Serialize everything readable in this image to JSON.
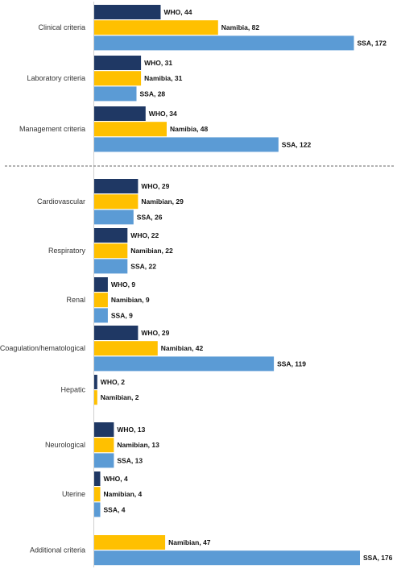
{
  "chart_data": {
    "type": "bar",
    "orientation": "horizontal",
    "colors": {
      "WHO": "#1f3864",
      "Namibia": "#ffc000",
      "SSA": "#5b9bd5"
    },
    "groups": [
      {
        "category": "Clinical criteria",
        "bars": [
          {
            "series": "WHO",
            "label": "WHO, 44",
            "value": 44
          },
          {
            "series": "Namibia",
            "label": "Namibia, 82",
            "value": 82
          },
          {
            "series": "SSA",
            "label": "SSA, 172",
            "value": 172
          }
        ]
      },
      {
        "category": "Laboratory criteria",
        "bars": [
          {
            "series": "WHO",
            "label": "WHO, 31",
            "value": 31
          },
          {
            "series": "Namibia",
            "label": "Namibia, 31",
            "value": 31
          },
          {
            "series": "SSA",
            "label": "SSA, 28",
            "value": 28
          }
        ]
      },
      {
        "category": "Management criteria",
        "bars": [
          {
            "series": "WHO",
            "label": "WHO, 34",
            "value": 34
          },
          {
            "series": "Namibia",
            "label": "Namibia, 48",
            "value": 48
          },
          {
            "series": "SSA",
            "label": "SSA, 122",
            "value": 122
          }
        ]
      },
      {
        "category": "Cardiovascular",
        "bars": [
          {
            "series": "WHO",
            "label": "WHO, 29",
            "value": 29
          },
          {
            "series": "Namibia",
            "label": "Namibian, 29",
            "value": 29
          },
          {
            "series": "SSA",
            "label": "SSA, 26",
            "value": 26
          }
        ]
      },
      {
        "category": "Respiratory",
        "bars": [
          {
            "series": "WHO",
            "label": "WHO, 22",
            "value": 22
          },
          {
            "series": "Namibia",
            "label": "Namibian, 22",
            "value": 22
          },
          {
            "series": "SSA",
            "label": "SSA, 22",
            "value": 22
          }
        ]
      },
      {
        "category": "Renal",
        "bars": [
          {
            "series": "WHO",
            "label": "WHO, 9",
            "value": 9
          },
          {
            "series": "Namibia",
            "label": "Namibian, 9",
            "value": 9
          },
          {
            "series": "SSA",
            "label": "SSA, 9",
            "value": 9
          }
        ]
      },
      {
        "category": "Coagulation/hematological",
        "bars": [
          {
            "series": "WHO",
            "label": "WHO, 29",
            "value": 29
          },
          {
            "series": "Namibia",
            "label": "Namibian, 42",
            "value": 42
          },
          {
            "series": "SSA",
            "label": "SSA, 119",
            "value": 119
          }
        ]
      },
      {
        "category": "Hepatic",
        "bars": [
          {
            "series": "WHO",
            "label": "WHO, 2",
            "value": 2
          },
          {
            "series": "Namibia",
            "label": "Namibian, 2",
            "value": 2
          }
        ]
      },
      {
        "category": "Neurological",
        "bars": [
          {
            "series": "WHO",
            "label": "WHO, 13",
            "value": 13
          },
          {
            "series": "Namibia",
            "label": "Namibian, 13",
            "value": 13
          },
          {
            "series": "SSA",
            "label": "SSA, 13",
            "value": 13
          }
        ]
      },
      {
        "category": "Uterine",
        "bars": [
          {
            "series": "WHO",
            "label": "WHO, 4",
            "value": 4
          },
          {
            "series": "Namibia",
            "label": "Namibian, 4",
            "value": 4
          },
          {
            "series": "SSA",
            "label": "SSA, 4",
            "value": 4
          }
        ]
      },
      {
        "category": "Additional criteria",
        "bars": [
          {
            "series": "Namibia",
            "label": "Namibian, 47",
            "value": 47
          },
          {
            "series": "SSA",
            "label": "SSA, 176",
            "value": 176
          }
        ]
      }
    ],
    "divider_after_group": 2,
    "xlim": [
      0,
      176
    ],
    "grid": false,
    "legend": "none"
  }
}
